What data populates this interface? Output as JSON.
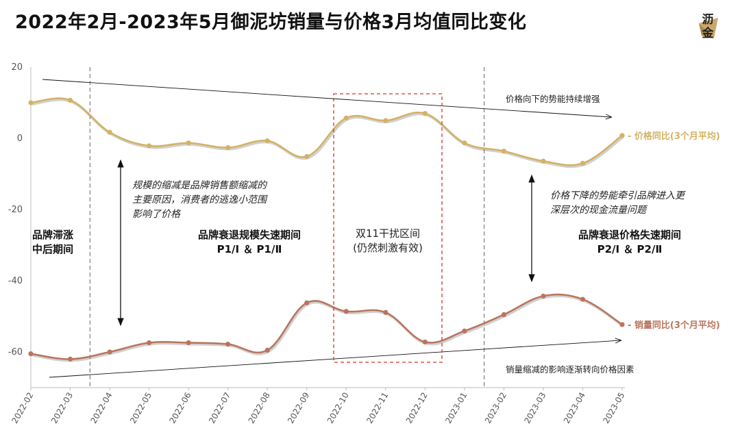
{
  "title": "2022年2月-2023年5月御泥坊销量与价格3月均值同比变化",
  "logo": {
    "text": "沥金",
    "icon": "star-fan-icon",
    "color": "#c9a86a"
  },
  "colors": {
    "price": "#d4b263",
    "volume": "#b9755e",
    "dashed_box": "#d9302c"
  },
  "chart_data": {
    "type": "line",
    "categories": [
      "2022-02",
      "2022-03",
      "2022-04",
      "2022-05",
      "2022-06",
      "2022-07",
      "2022-08",
      "2022-09",
      "2022-10",
      "2022-11",
      "2022-12",
      "2023-01",
      "2023-02",
      "2023-03",
      "2023-04",
      "2023-05"
    ],
    "ylim": [
      -70,
      20
    ],
    "yticks": [
      20,
      0,
      -20,
      -40,
      -60
    ],
    "grid": false,
    "series": [
      {
        "name": "价格同比(3个月平均)",
        "color": "#d4b263",
        "values": [
          10,
          10.7,
          1.7,
          -2.1,
          -1.3,
          -2.6,
          -0.7,
          -5.1,
          5.7,
          5.0,
          7.0,
          -1.3,
          -3.6,
          -6.4,
          -7.0,
          0.8
        ]
      },
      {
        "name": "销量同比(3个月平均)",
        "color": "#b9755e",
        "values": [
          -60.5,
          -62.0,
          -60.0,
          -57.4,
          -57.4,
          -57.8,
          -59.5,
          -46.2,
          -48.6,
          -48.9,
          -57.2,
          -54.1,
          -49.5,
          -44.3,
          -45.2,
          -52.3
        ]
      }
    ],
    "divider_after_categories": [
      "2022-03",
      "2023-01"
    ],
    "annotations": {
      "price_trend": "价格向下的势能持续增强",
      "volume_trend": "销量缩减的影响逐渐转向价格因素",
      "left_note_line1": "规模的缩减是品牌销售额缩减的",
      "left_note_line2": "主要原因，消费者的逃逸小范围",
      "left_note_line3": "影响了价格",
      "right_note_line1": "价格下降的势能牵引品牌进入更",
      "right_note_line2": "深层次的现金流量问题",
      "period1_line1": "品牌滞涨",
      "period1_line2": "中后期间",
      "period2_line1": "品牌衰退规模失速期间",
      "period2_line2": "P1/Ⅰ ＆ P1/Ⅱ",
      "period3_line1": "双11干扰区间",
      "period3_line2": "(仍然刺激有效)",
      "period4_line1": "品牌衰退价格失速期间",
      "period4_line2": "P2/Ⅰ ＆ P2/Ⅱ"
    }
  }
}
